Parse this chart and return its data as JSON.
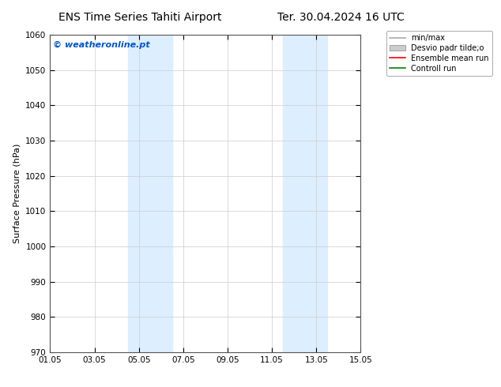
{
  "title": "ENS Time Series Tahiti Airport",
  "title2": "Ter. 30.04.2024 16 UTC",
  "ylabel": "Surface Pressure (hPa)",
  "ylim": [
    970,
    1060
  ],
  "yticks": [
    970,
    980,
    990,
    1000,
    1010,
    1020,
    1030,
    1040,
    1050,
    1060
  ],
  "xtick_labels": [
    "01.05",
    "03.05",
    "05.05",
    "07.05",
    "09.05",
    "11.05",
    "13.05",
    "15.05"
  ],
  "xtick_positions": [
    0,
    2,
    4,
    6,
    8,
    10,
    12,
    14
  ],
  "shaded_regions": [
    {
      "x_start": 3.5,
      "x_end": 5.5
    },
    {
      "x_start": 10.5,
      "x_end": 12.5
    }
  ],
  "shaded_color": "#ddeeff",
  "watermark_text": "© weatheronline.pt",
  "watermark_color": "#0055cc",
  "legend_entries": [
    {
      "label": "min/max",
      "color": "#aaaaaa",
      "lw": 1.2,
      "type": "line"
    },
    {
      "label": "Desvio padr tilde;o",
      "color": "#cccccc",
      "lw": 8,
      "type": "patch"
    },
    {
      "label": "Ensemble mean run",
      "color": "red",
      "lw": 1.2,
      "type": "line"
    },
    {
      "label": "Controll run",
      "color": "green",
      "lw": 1.2,
      "type": "line"
    }
  ],
  "bg_color": "#ffffff",
  "grid_color": "#cccccc",
  "title_fontsize": 10,
  "axis_fontsize": 8,
  "tick_fontsize": 7.5,
  "legend_fontsize": 7,
  "watermark_fontsize": 8
}
